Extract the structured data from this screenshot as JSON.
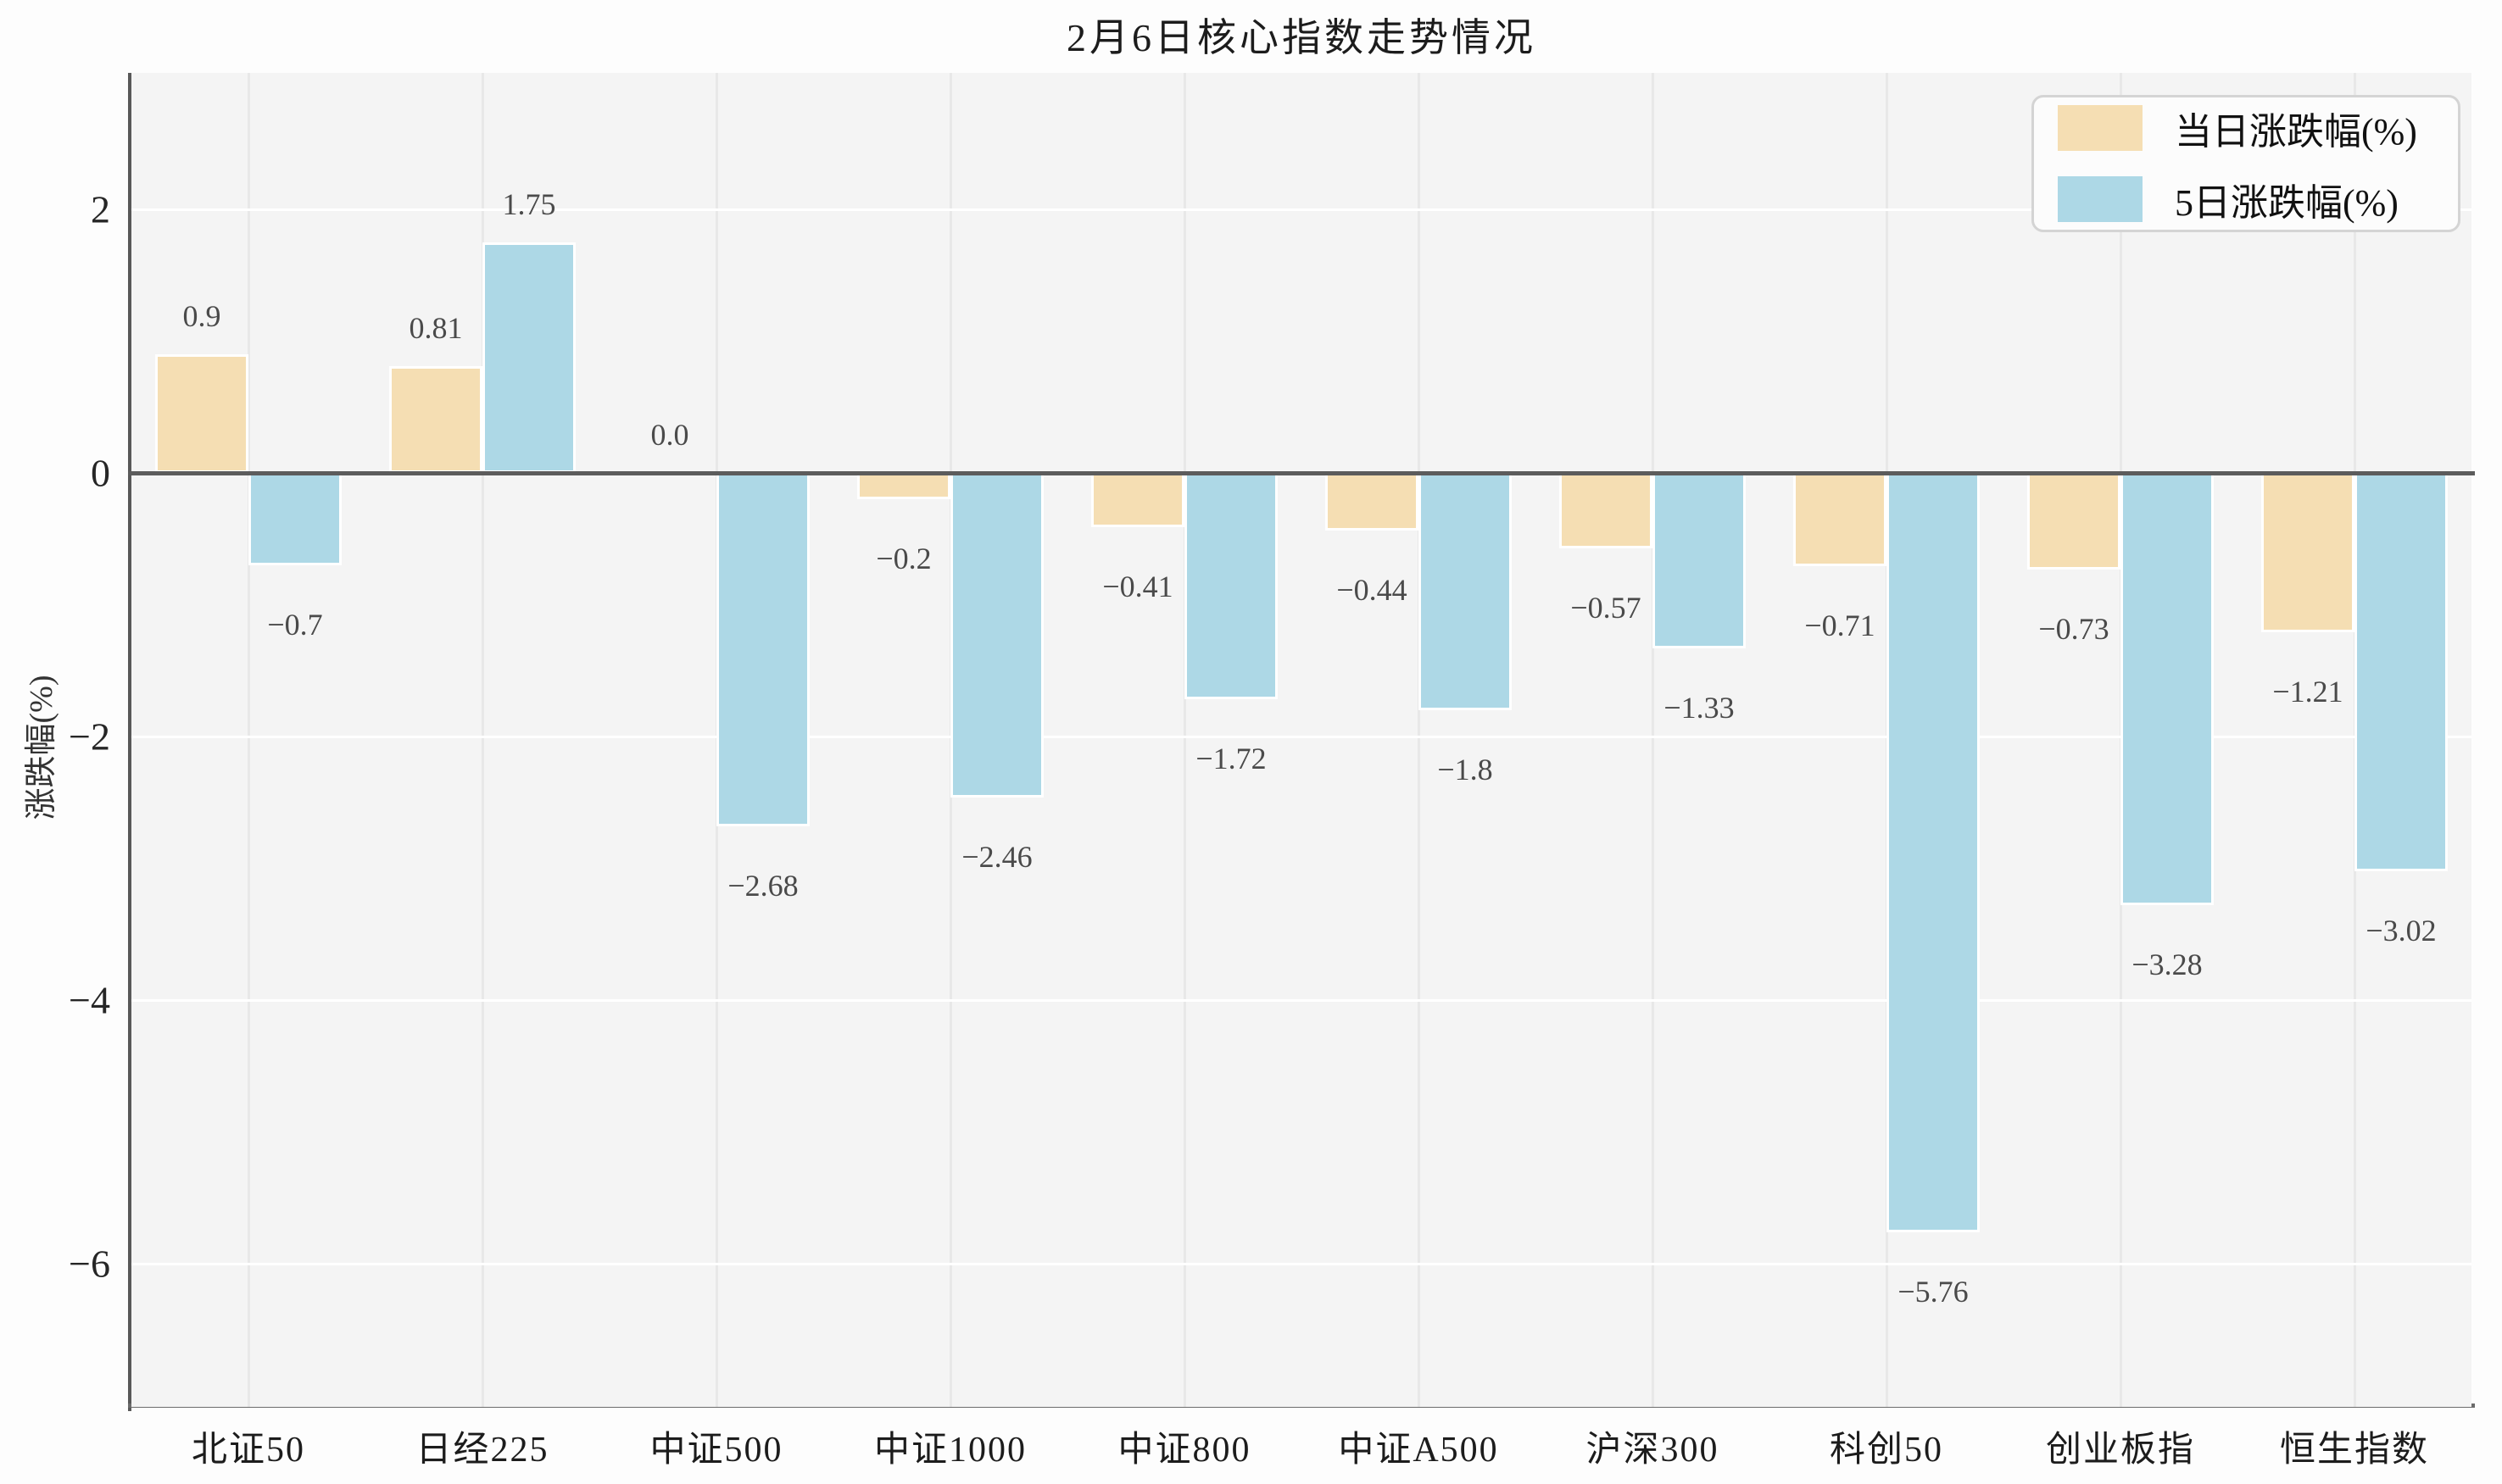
{
  "title": "2月6日核心指数走势情况",
  "chart_data": {
    "type": "bar",
    "title": "2月6日核心指数走势情况",
    "xlabel": "",
    "ylabel": "涨跌幅(%)",
    "categories": [
      "北证50",
      "日经225",
      "中证500",
      "中证1000",
      "中证800",
      "中证A500",
      "沪深300",
      "科创50",
      "创业板指",
      "恒生指数"
    ],
    "series": [
      {
        "name": "当日涨跌幅(%)",
        "color": "#F5DEB3",
        "values": [
          0.9,
          0.81,
          0.0,
          -0.2,
          -0.41,
          -0.44,
          -0.57,
          -0.71,
          -0.73,
          -1.21
        ],
        "labels": [
          "0.9",
          "0.81",
          "0.0",
          "−0.2",
          "−0.41",
          "−0.44",
          "−0.57",
          "−0.71",
          "−0.73",
          "−1.21"
        ]
      },
      {
        "name": "5日涨跌幅(%)",
        "color": "#ADD8E6",
        "values": [
          -0.7,
          1.75,
          -2.68,
          -2.46,
          -1.72,
          -1.8,
          -1.33,
          -5.76,
          -3.28,
          -3.02
        ],
        "labels": [
          "−0.7",
          "1.75",
          "−2.68",
          "−2.46",
          "−1.72",
          "−1.8",
          "−1.33",
          "−5.76",
          "−3.28",
          "−3.02"
        ]
      }
    ],
    "yticks": [
      2,
      0,
      -2,
      -4,
      -6
    ],
    "ytick_labels": [
      "2",
      "0",
      "−2",
      "−4",
      "−6"
    ],
    "ylim": [
      -7.09,
      3.04
    ],
    "grid": true,
    "legend_position": "upper right",
    "plot_background": "#f4f4f4",
    "hgrid_color": "#ffffff",
    "vgrid_color": "#e8e8e8",
    "zero_line_color": "#5c5c5c"
  }
}
